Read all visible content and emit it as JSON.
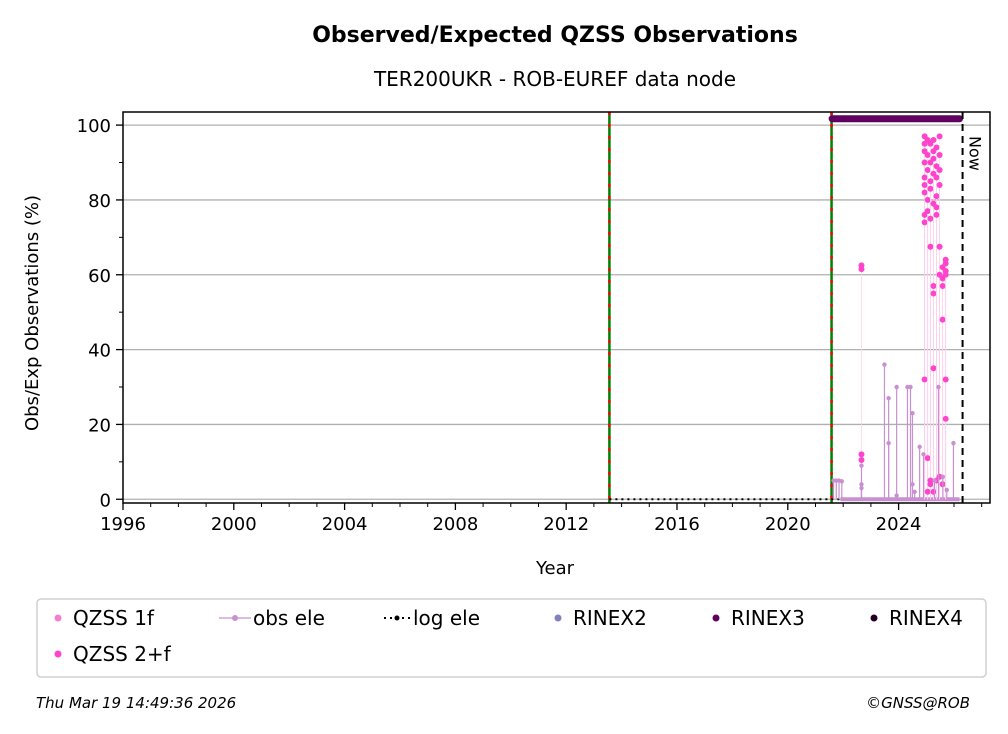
{
  "chart_data": {
    "type": "scatter",
    "title": "Observed/Expected QZSS Observations",
    "subtitle": "TER200UKR - ROB-EUREF data node",
    "xlabel": "Year",
    "ylabel": "Obs/Exp Observations (%)",
    "xlim": [
      1996,
      2027.3
    ],
    "ylim": [
      -1,
      103.5
    ],
    "xticks": [
      1996,
      2000,
      2004,
      2008,
      2012,
      2016,
      2020,
      2024
    ],
    "yticks": [
      0,
      20,
      40,
      60,
      80,
      100
    ],
    "grid": "horizontal",
    "now_label": "Now",
    "now_year": 2026.31,
    "equipment_change_lines": [
      2013.56,
      2021.58
    ],
    "rinex3_span": {
      "from": 2021.6,
      "to": 2026.2,
      "value": 101.7
    },
    "log_ele": {
      "from": 2013.56,
      "to": 2026.31,
      "value": 0
    },
    "legend": {
      "placement": "below",
      "entries": [
        {
          "label": "QZSS 1f",
          "color": "#f080d0",
          "marker": "dot"
        },
        {
          "label": "obs ele",
          "color": "#c890d0",
          "marker": "line-dot"
        },
        {
          "label": "log ele",
          "color": "#000000",
          "marker": "dotted-line"
        },
        {
          "label": "RINEX2",
          "color": "#8080c0",
          "marker": "dot"
        },
        {
          "label": "RINEX3",
          "color": "#600060",
          "marker": "dot"
        },
        {
          "label": "RINEX4",
          "color": "#200020",
          "marker": "dot"
        },
        {
          "label": "QZSS 2+f",
          "color": "#ff44cc",
          "marker": "dot"
        }
      ]
    },
    "series": [
      {
        "name": "QZSS 2+f",
        "color": "#ff44cc",
        "points": [
          [
            2022.66,
            62.5
          ],
          [
            2022.66,
            61.5
          ],
          [
            2022.66,
            12
          ],
          [
            2022.66,
            10.5
          ],
          [
            2024.94,
            97
          ],
          [
            2024.94,
            95
          ],
          [
            2024.94,
            93
          ],
          [
            2024.94,
            90
          ],
          [
            2024.94,
            86
          ],
          [
            2024.94,
            84
          ],
          [
            2024.94,
            82
          ],
          [
            2024.94,
            76
          ],
          [
            2024.94,
            74
          ],
          [
            2024.94,
            32
          ],
          [
            2025.05,
            96
          ],
          [
            2025.05,
            92
          ],
          [
            2025.05,
            88
          ],
          [
            2025.05,
            80
          ],
          [
            2025.05,
            77
          ],
          [
            2025.05,
            11
          ],
          [
            2025.05,
            2
          ],
          [
            2025.15,
            95
          ],
          [
            2025.15,
            90
          ],
          [
            2025.15,
            85
          ],
          [
            2025.15,
            83
          ],
          [
            2025.15,
            75
          ],
          [
            2025.15,
            67.5
          ],
          [
            2025.15,
            5
          ],
          [
            2025.15,
            4
          ],
          [
            2025.26,
            96
          ],
          [
            2025.26,
            93
          ],
          [
            2025.26,
            91
          ],
          [
            2025.26,
            87
          ],
          [
            2025.26,
            79
          ],
          [
            2025.26,
            57
          ],
          [
            2025.26,
            55
          ],
          [
            2025.26,
            35
          ],
          [
            2025.26,
            2
          ],
          [
            2025.37,
            94
          ],
          [
            2025.37,
            89
          ],
          [
            2025.37,
            86
          ],
          [
            2025.37,
            81
          ],
          [
            2025.37,
            78
          ],
          [
            2025.37,
            76
          ],
          [
            2025.37,
            5
          ],
          [
            2025.48,
            97
          ],
          [
            2025.48,
            92
          ],
          [
            2025.48,
            88
          ],
          [
            2025.48,
            84
          ],
          [
            2025.48,
            67.5
          ],
          [
            2025.48,
            60
          ],
          [
            2025.48,
            6
          ],
          [
            2025.59,
            62
          ],
          [
            2025.59,
            59
          ],
          [
            2025.59,
            57
          ],
          [
            2025.59,
            48
          ],
          [
            2025.59,
            4
          ],
          [
            2025.7,
            64
          ],
          [
            2025.7,
            63
          ],
          [
            2025.7,
            61
          ],
          [
            2025.7,
            60
          ],
          [
            2025.7,
            32
          ],
          [
            2025.7,
            21.5
          ]
        ]
      },
      {
        "name": "obs ele",
        "color": "#c890d0",
        "points": [
          [
            2021.65,
            5
          ],
          [
            2021.75,
            5
          ],
          [
            2021.85,
            5
          ],
          [
            2021.95,
            4.8
          ],
          [
            2022.66,
            9
          ],
          [
            2022.66,
            4
          ],
          [
            2022.66,
            3
          ],
          [
            2023.49,
            36
          ],
          [
            2023.64,
            27
          ],
          [
            2023.64,
            15
          ],
          [
            2023.93,
            30
          ],
          [
            2023.93,
            1
          ],
          [
            2024.32,
            30
          ],
          [
            2024.43,
            30
          ],
          [
            2024.5,
            23
          ],
          [
            2024.5,
            4
          ],
          [
            2024.58,
            2
          ],
          [
            2024.76,
            14
          ],
          [
            2024.9,
            12
          ],
          [
            2025.3,
            5
          ],
          [
            2025.44,
            30
          ],
          [
            2025.6,
            6
          ],
          [
            2025.74,
            2.5
          ],
          [
            2025.98,
            15
          ]
        ]
      }
    ]
  },
  "footer": {
    "timestamp": "Thu Mar 19 14:49:36 2026",
    "credit": "©GNSS@ROB"
  }
}
